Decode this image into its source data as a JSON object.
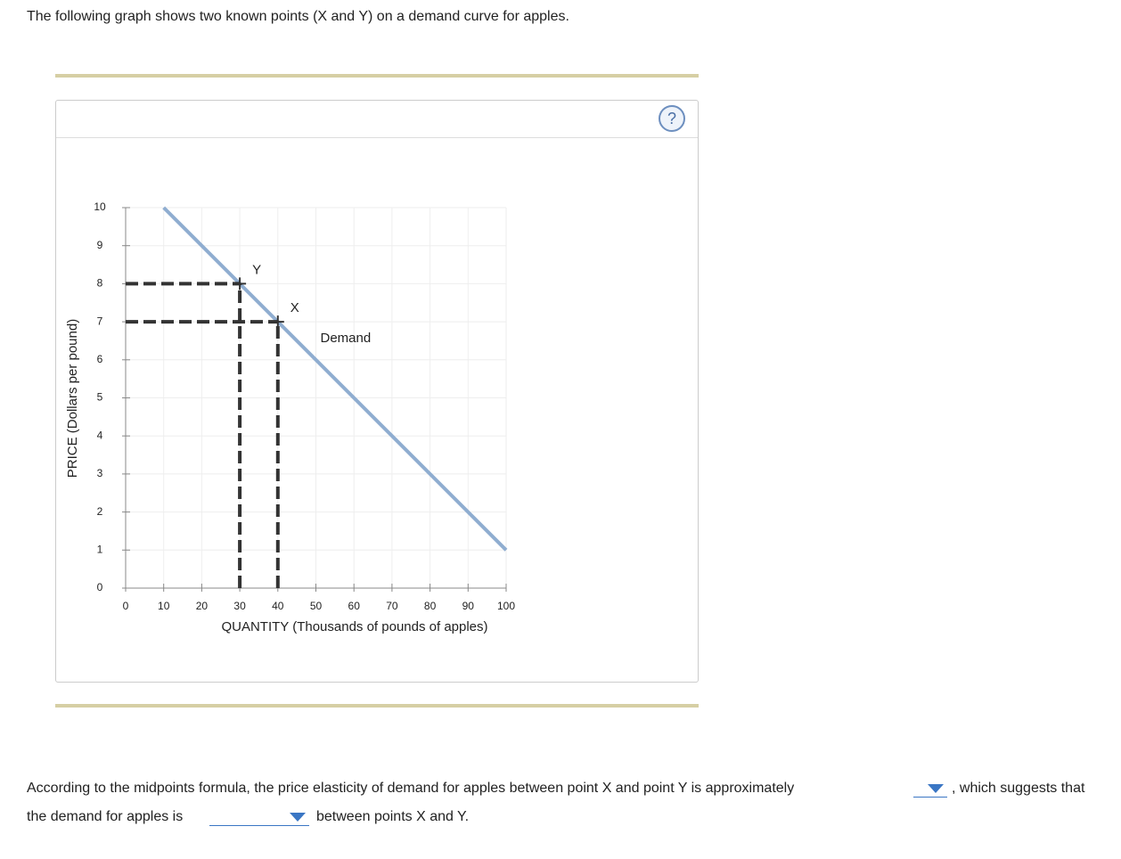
{
  "question": {
    "intro": "The following graph shows two known points (X and Y) on a demand curve for apples.",
    "help_icon": "?",
    "line1": "According to the midpoints formula, the price elasticity of demand for apples between point X and point Y is approximately",
    "line1_end": ", which suggests that",
    "line2": "the demand for apples is",
    "line2_end": "between points X and Y."
  },
  "chart_data": {
    "type": "line",
    "x_label": "QUANTITY (Thousands of pounds of apples)",
    "y_label": "PRICE (Dollars per pound)",
    "series": [
      {
        "name": "Demand",
        "color": "#8fadd0",
        "x": [
          10,
          100
        ],
        "values": [
          10,
          1
        ]
      }
    ],
    "points": [
      {
        "label": "Y",
        "x": 30,
        "y": 8
      },
      {
        "label": "X",
        "x": 40,
        "y": 7
      }
    ],
    "xlim": [
      0,
      100
    ],
    "ylim": [
      0,
      10
    ],
    "xticks": [
      0,
      10,
      20,
      30,
      40,
      50,
      60,
      70,
      80,
      90,
      100
    ],
    "yticks": [
      0,
      1,
      2,
      3,
      4,
      5,
      6,
      7,
      8,
      9,
      10
    ],
    "grid": true
  }
}
